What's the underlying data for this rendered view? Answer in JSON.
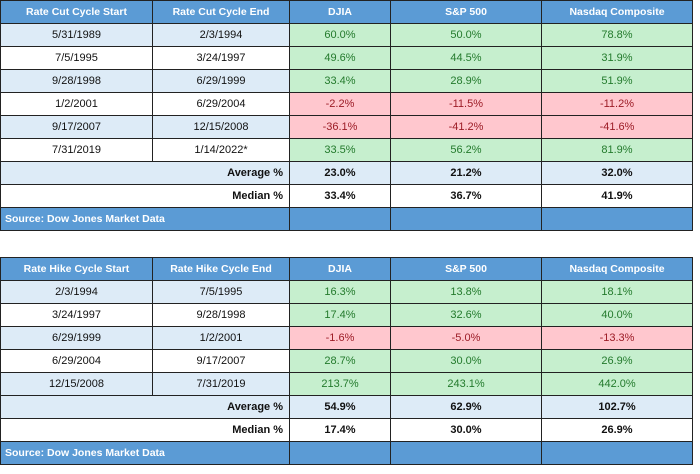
{
  "cut_table": {
    "headers": [
      "Rate Cut Cycle Start",
      "Rate Cut Cycle End",
      "DJIA",
      "S&P 500",
      "Nasdaq Composite"
    ],
    "rows": [
      {
        "start": "5/31/1989",
        "end": "2/3/1994",
        "djia": "60.0%",
        "sp500": "50.0%",
        "nasdaq": "78.8%"
      },
      {
        "start": "7/5/1995",
        "end": "3/24/1997",
        "djia": "49.6%",
        "sp500": "44.5%",
        "nasdaq": "31.9%"
      },
      {
        "start": "9/28/1998",
        "end": "6/29/1999",
        "djia": "33.4%",
        "sp500": "28.9%",
        "nasdaq": "51.9%"
      },
      {
        "start": "1/2/2001",
        "end": "6/29/2004",
        "djia": "-2.2%",
        "sp500": "-11.5%",
        "nasdaq": "-11.2%"
      },
      {
        "start": "9/17/2007",
        "end": "12/15/2008",
        "djia": "-36.1%",
        "sp500": "-41.2%",
        "nasdaq": "-41.6%"
      },
      {
        "start": "7/31/2019",
        "end": "1/14/2022*",
        "djia": "33.5%",
        "sp500": "56.2%",
        "nasdaq": "81.9%"
      }
    ],
    "average": {
      "label": "Average %",
      "djia": "23.0%",
      "sp500": "21.2%",
      "nasdaq": "32.0%"
    },
    "median": {
      "label": "Median %",
      "djia": "33.4%",
      "sp500": "36.7%",
      "nasdaq": "41.9%"
    },
    "source": "Source: Dow Jones Market Data"
  },
  "hike_table": {
    "headers": [
      "Rate Hike Cycle Start",
      "Rate Hike Cycle End",
      "DJIA",
      "S&P 500",
      "Nasdaq Composite"
    ],
    "rows": [
      {
        "start": "2/3/1994",
        "end": "7/5/1995",
        "djia": "16.3%",
        "sp500": "13.8%",
        "nasdaq": "18.1%"
      },
      {
        "start": "3/24/1997",
        "end": "9/28/1998",
        "djia": "17.4%",
        "sp500": "32.6%",
        "nasdaq": "40.0%"
      },
      {
        "start": "6/29/1999",
        "end": "1/2/2001",
        "djia": "-1.6%",
        "sp500": "-5.0%",
        "nasdaq": "-13.3%"
      },
      {
        "start": "6/29/2004",
        "end": "9/17/2007",
        "djia": "28.7%",
        "sp500": "30.0%",
        "nasdaq": "26.9%"
      },
      {
        "start": "12/15/2008",
        "end": "7/31/2019",
        "djia": "213.7%",
        "sp500": "243.1%",
        "nasdaq": "442.0%"
      }
    ],
    "average": {
      "label": "Average %",
      "djia": "54.9%",
      "sp500": "62.9%",
      "nasdaq": "102.7%"
    },
    "median": {
      "label": "Median %",
      "djia": "17.4%",
      "sp500": "30.0%",
      "nasdaq": "26.9%"
    },
    "source": "Source: Dow Jones Market Data"
  },
  "colors": {
    "header_bg": "#5b9bd5",
    "row_light_bg": "#ddebf7",
    "positive_bg": "#c6efce",
    "positive_text": "#237a2c",
    "negative_bg": "#ffc7ce",
    "negative_text": "#9c1c26"
  }
}
